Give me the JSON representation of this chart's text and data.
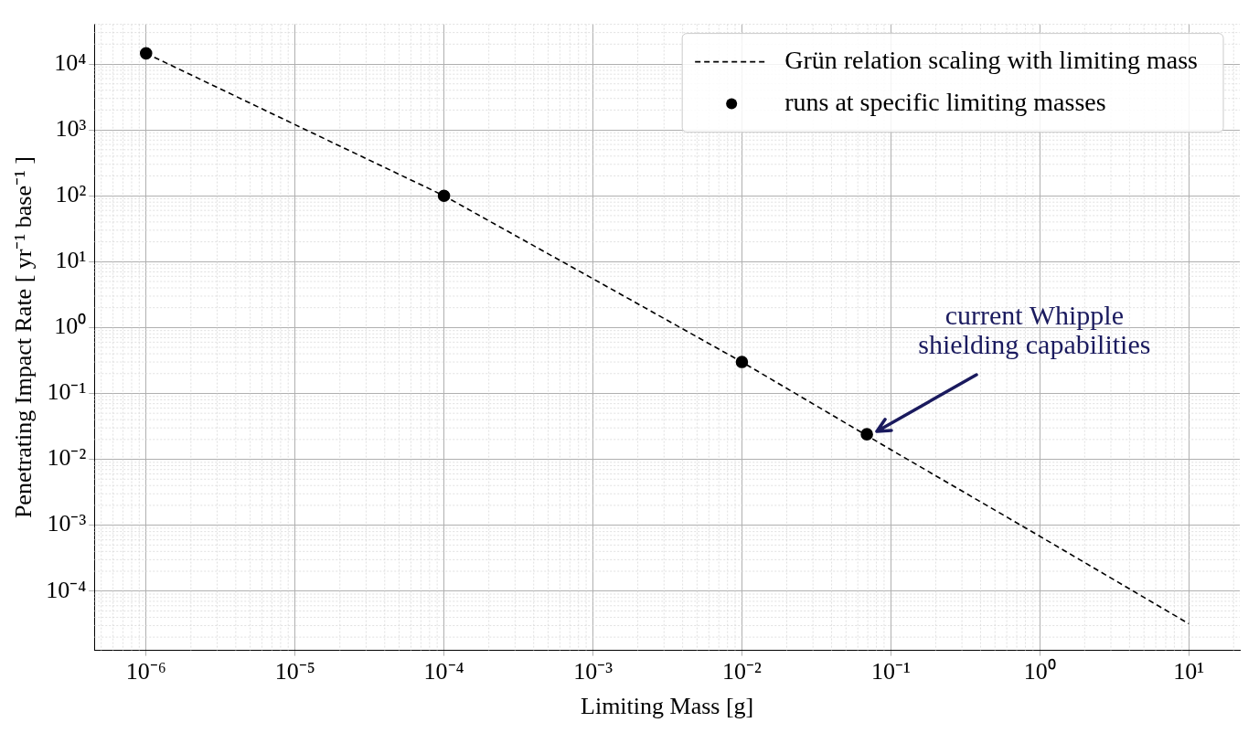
{
  "chart_data": {
    "type": "line",
    "xlabel": "Limiting Mass [g]",
    "ylabel": "Penetrating Impact Rate [ yr⁻¹ base⁻¹ ]",
    "log": "xy",
    "grid": true,
    "legend": "top right",
    "xlim": [
      4.5e-07,
      22
    ],
    "ylim": [
      1.26e-05,
      40000
    ],
    "xticks": [
      {
        "value": 1e-06,
        "label": "10⁻⁶"
      },
      {
        "value": 1e-05,
        "label": "10⁻⁵"
      },
      {
        "value": 0.0001,
        "label": "10⁻⁴"
      },
      {
        "value": 0.001,
        "label": "10⁻³"
      },
      {
        "value": 0.01,
        "label": "10⁻²"
      },
      {
        "value": 0.1,
        "label": "10⁻¹"
      },
      {
        "value": 1,
        "label": "10⁰"
      },
      {
        "value": 10,
        "label": "10¹"
      }
    ],
    "yticks": [
      {
        "value": 0.0001,
        "label": "10⁻⁴"
      },
      {
        "value": 0.001,
        "label": "10⁻³"
      },
      {
        "value": 0.01,
        "label": "10⁻²"
      },
      {
        "value": 0.1,
        "label": "10⁻¹"
      },
      {
        "value": 1,
        "label": "10⁰"
      },
      {
        "value": 10,
        "label": "10¹"
      },
      {
        "value": 100,
        "label": "10²"
      },
      {
        "value": 1000,
        "label": "10³"
      },
      {
        "value": 10000,
        "label": "10⁴"
      }
    ],
    "series": [
      {
        "name": "Grün relation scaling with limiting mass",
        "type": "line",
        "color": "#000000",
        "line_style": "dashed",
        "marker": "none",
        "x": [
          1e-06,
          1e-05,
          0.0001,
          0.001,
          0.01,
          0.1,
          1,
          10
        ],
        "values": [
          14500,
          1200,
          100,
          5.5,
          0.3,
          0.014,
          0.00068,
          3.2e-05
        ]
      },
      {
        "name": "runs at specific limiting masses",
        "type": "scatter",
        "color": "#000000",
        "marker": "circle",
        "x": [
          1e-06,
          0.0001,
          0.01,
          0.069
        ],
        "values": [
          14500,
          100,
          0.3,
          0.024
        ]
      }
    ],
    "annotations": [
      "current Whipple\nshielding capabilities"
    ]
  }
}
